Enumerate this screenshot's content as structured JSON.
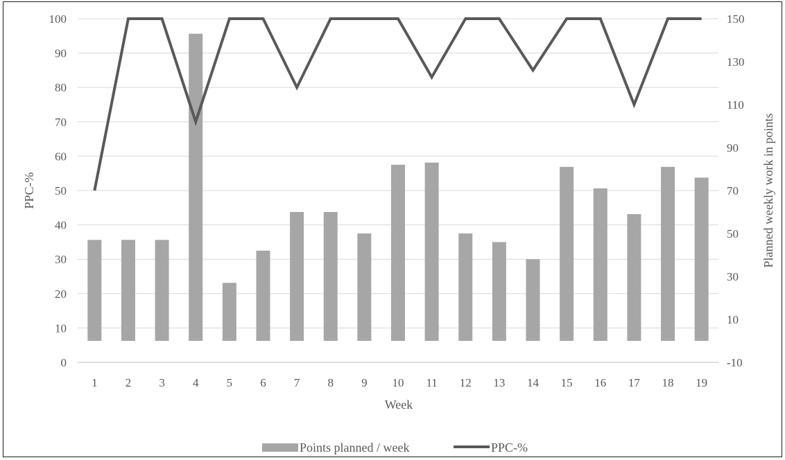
{
  "chart_data": {
    "type": "bar",
    "title": "",
    "xlabel": "Week",
    "ylabel_left": "PPC-%",
    "ylabel_right": "Planned weekly work in points",
    "categories": [
      "1",
      "2",
      "3",
      "4",
      "5",
      "6",
      "7",
      "8",
      "9",
      "10",
      "11",
      "12",
      "13",
      "14",
      "15",
      "16",
      "17",
      "18",
      "19"
    ],
    "ylim_left": [
      0,
      100
    ],
    "yticks_left": [
      0,
      10,
      20,
      30,
      40,
      50,
      60,
      70,
      80,
      90,
      100
    ],
    "ylim_right": [
      -10,
      150
    ],
    "yticks_right": [
      -10,
      10,
      30,
      50,
      70,
      90,
      110,
      130,
      150
    ],
    "grid": true,
    "legend_position": "bottom",
    "series": [
      {
        "name": "Points planned / week",
        "type": "bar",
        "axis": "right",
        "color": "#a6a6a6",
        "values": [
          47,
          47,
          47,
          143,
          27,
          42,
          60,
          60,
          50,
          82,
          83,
          50,
          46,
          38,
          81,
          71,
          59,
          81,
          76
        ]
      },
      {
        "name": "PPC-%",
        "type": "line",
        "axis": "left",
        "color": "#595959",
        "values": [
          50,
          100,
          100,
          70,
          100,
          100,
          80,
          100,
          100,
          100,
          83,
          100,
          100,
          85,
          100,
          100,
          75,
          100,
          100
        ]
      }
    ]
  }
}
